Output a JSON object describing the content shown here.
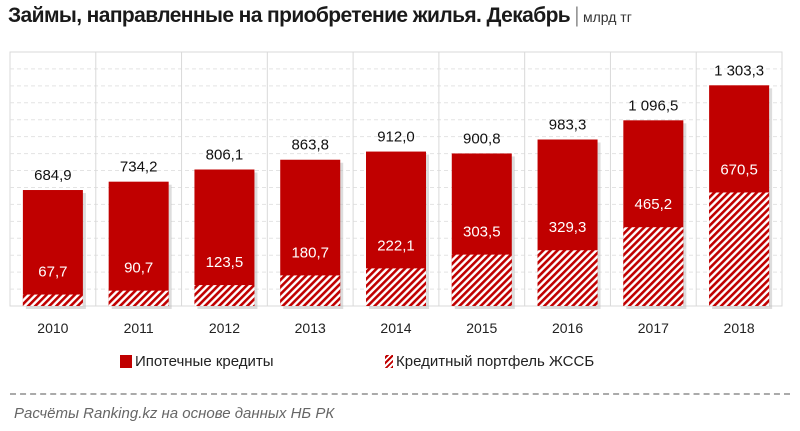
{
  "title": "Займы, направленные на приобретение жилья. Декабрь",
  "unit": "млрд тг",
  "footer": "Расчёты Ranking.kz на основе данных НБ РК",
  "colors": {
    "mortgage": "#c00000",
    "hatch": "#c00000",
    "grid": "#d9d9d9"
  },
  "chart_data": {
    "type": "bar",
    "stacked": true,
    "categories": [
      "2010",
      "2011",
      "2012",
      "2013",
      "2014",
      "2015",
      "2016",
      "2017",
      "2018"
    ],
    "total_labels": [
      "684,9",
      "734,2",
      "806,1",
      "863,8",
      "912,0",
      "900,8",
      "983,3",
      "1 096,5",
      "1 303,3"
    ],
    "totals": [
      684.9,
      734.2,
      806.1,
      863.8,
      912.0,
      900.8,
      983.3,
      1096.5,
      1303.3
    ],
    "series": [
      {
        "name": "Ипотечные кредиты",
        "style": "solid",
        "values": [
          617.2,
          643.5,
          682.6,
          683.1,
          689.9,
          597.3,
          654.0,
          631.3,
          632.8
        ]
      },
      {
        "name": "Кредитный портфель ЖССБ",
        "style": "hatched",
        "values": [
          67.7,
          90.7,
          123.5,
          180.7,
          222.1,
          303.5,
          329.3,
          465.2,
          670.5
        ],
        "labels": [
          "67,7",
          "90,7",
          "123,5",
          "180,7",
          "222,1",
          "303,5",
          "329,3",
          "465,2",
          "670,5"
        ]
      }
    ],
    "ylim": [
      0,
      1500
    ],
    "grid": true,
    "legend": "bottom"
  }
}
